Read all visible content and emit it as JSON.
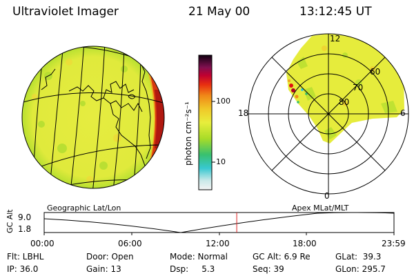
{
  "header": {
    "instrument": "Ultraviolet Imager",
    "date": "21 May 00",
    "time": "13:12:45 UT"
  },
  "colorbar": {
    "unit_label": "photon cm⁻²s⁻¹",
    "ticks": [
      "100",
      "10"
    ]
  },
  "polar_plot": {
    "mlt_labels": {
      "top": "12",
      "left": "18",
      "right": "6",
      "bottom": "0"
    },
    "lat_labels": [
      "60",
      "70",
      "80"
    ]
  },
  "maps": {
    "left_label": "Geographic Lat/Lon",
    "right_label": "Apex MLat/MLT"
  },
  "altitude_panel": {
    "axis_label": "GC Alt",
    "max_label": "9.0",
    "min_label": "1.8",
    "current_time_fraction": 0.5505,
    "time_ticks": [
      "00:00",
      "06:00",
      "12:00",
      "18:00",
      "23:59"
    ]
  },
  "status": {
    "filter": "Flt: LBHL",
    "ip": "IP: 36.0",
    "door": "Door: Open",
    "gain": "Gain: 13",
    "mode": "Mode: Normal",
    "dsp": "Dsp:     5.3",
    "gc_alt": "GC Alt: 6.9 Re",
    "seq": "Seq: 39",
    "glat": "GLat:  39.3",
    "glon": "GLon: 295.7"
  },
  "colors": {
    "background": "#ffffff",
    "emission_base": "#e8ee3c",
    "limb_glow": "#d83a10",
    "auroral_red": "#e01010",
    "current_time_marker": "#dd2020"
  }
}
